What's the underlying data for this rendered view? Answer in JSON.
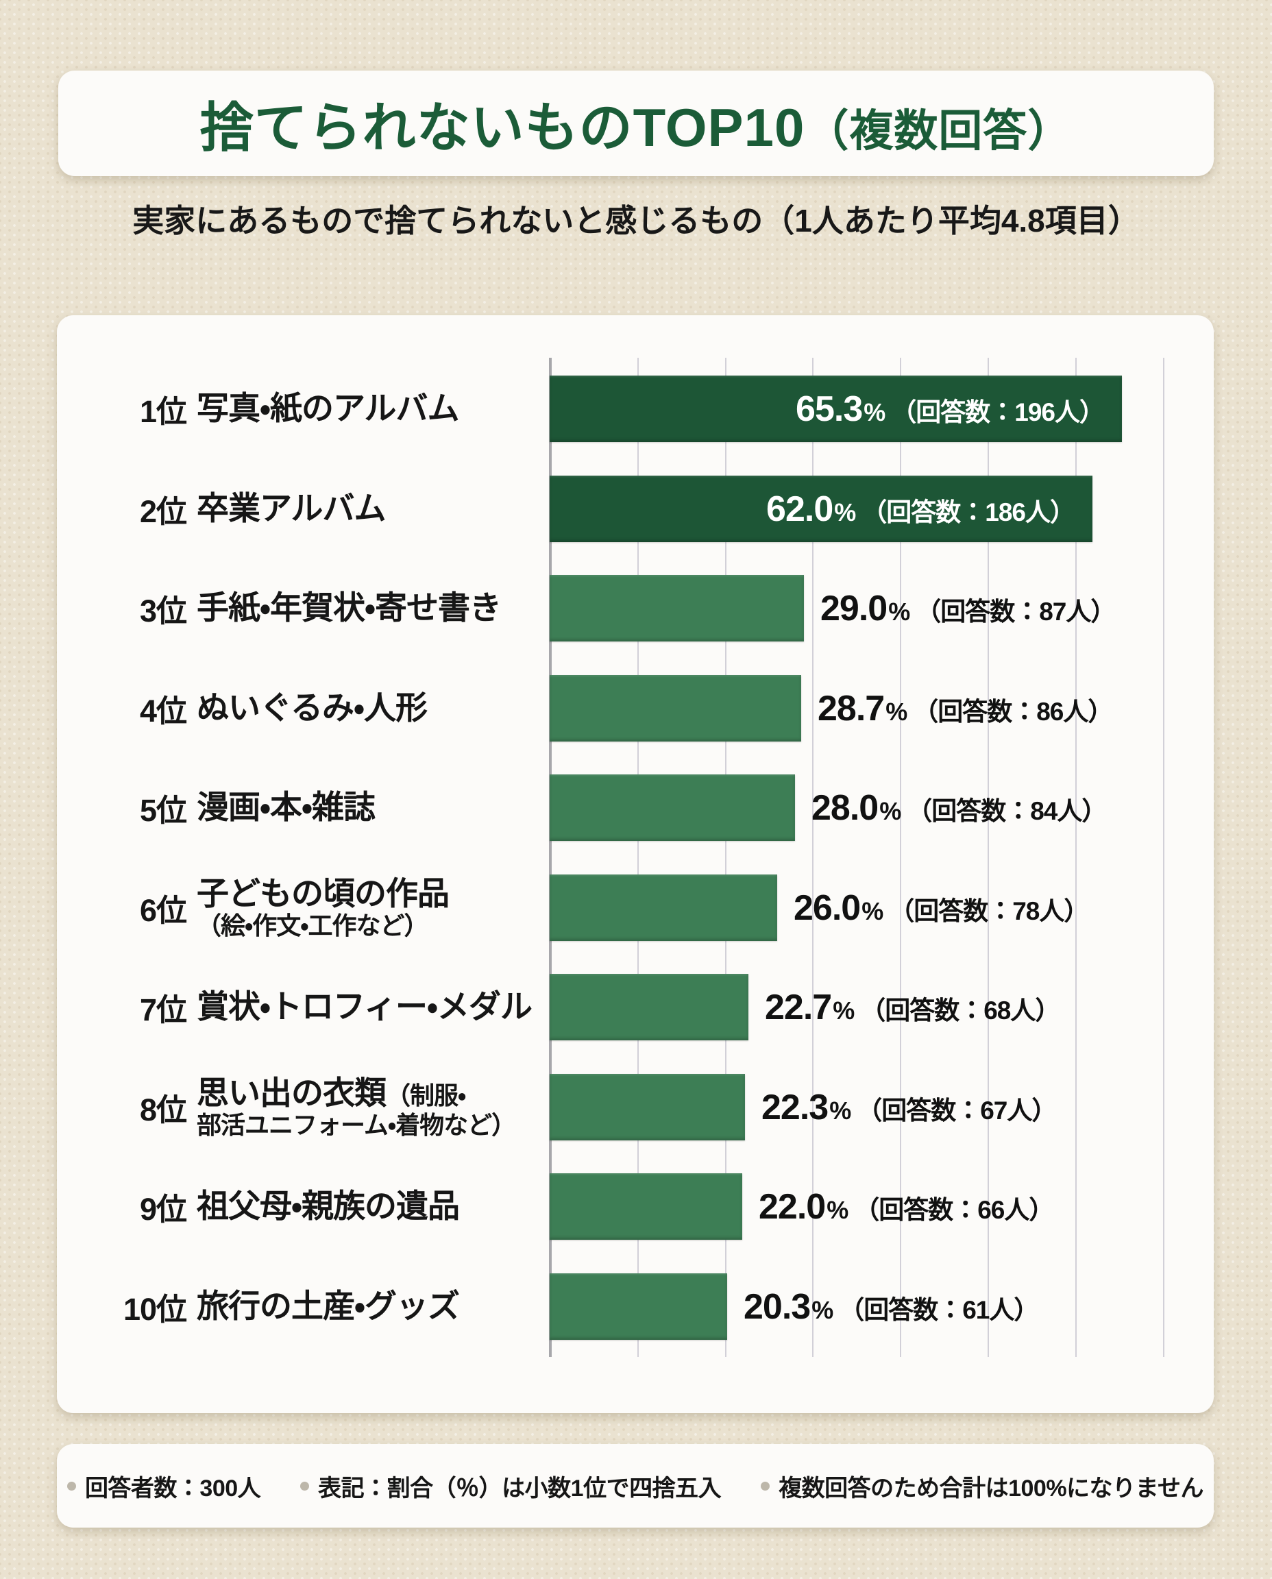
{
  "title": {
    "main": "捨てられないものTOP10",
    "paren": "（複数回答）"
  },
  "subtitle": "実家にあるもので捨てられないと感じるもの（1人あたり平均4.8項目）",
  "chart_data": {
    "type": "bar",
    "orientation": "horizontal",
    "title": "捨てられないものTOP10（複数回答）",
    "value_unit": "%",
    "xlim": [
      0,
      70
    ],
    "gridline_interval_pct": 10,
    "grid": true,
    "items": [
      {
        "rank": "1位",
        "label": "写真・紙のアルバム",
        "label_inline_sub": "",
        "label_sub": "",
        "value": 65.3,
        "value_label": "65.3",
        "count": 196,
        "count_label": "（回答数：196人）",
        "emphasis": true
      },
      {
        "rank": "2位",
        "label": "卒業アルバム",
        "label_inline_sub": "",
        "label_sub": "",
        "value": 62.0,
        "value_label": "62.0",
        "count": 186,
        "count_label": "（回答数：186人）",
        "emphasis": true
      },
      {
        "rank": "3位",
        "label": "手紙・年賀状・寄せ書き",
        "label_inline_sub": "",
        "label_sub": "",
        "value": 29.0,
        "value_label": "29.0",
        "count": 87,
        "count_label": "（回答数：87人）",
        "emphasis": false
      },
      {
        "rank": "4位",
        "label": "ぬいぐるみ・人形",
        "label_inline_sub": "",
        "label_sub": "",
        "value": 28.7,
        "value_label": "28.7",
        "count": 86,
        "count_label": "（回答数：86人）",
        "emphasis": false
      },
      {
        "rank": "5位",
        "label": "漫画・本・雑誌",
        "label_inline_sub": "",
        "label_sub": "",
        "value": 28.0,
        "value_label": "28.0",
        "count": 84,
        "count_label": "（回答数：84人）",
        "emphasis": false
      },
      {
        "rank": "6位",
        "label": "子どもの頃の作品",
        "label_inline_sub": "",
        "label_sub": "（絵・作文・工作など）",
        "value": 26.0,
        "value_label": "26.0",
        "count": 78,
        "count_label": "（回答数：78人）",
        "emphasis": false
      },
      {
        "rank": "7位",
        "label": "賞状・トロフィー・メダル",
        "label_inline_sub": "",
        "label_sub": "",
        "value": 22.7,
        "value_label": "22.7",
        "count": 68,
        "count_label": "（回答数：68人）",
        "emphasis": false
      },
      {
        "rank": "8位",
        "label": "思い出の衣類",
        "label_inline_sub": "（制服・",
        "label_sub": "部活ユニフォーム・着物など）",
        "value": 22.3,
        "value_label": "22.3",
        "count": 67,
        "count_label": "（回答数：67人）",
        "emphasis": false
      },
      {
        "rank": "9位",
        "label": "祖父母・親族の遺品",
        "label_inline_sub": "",
        "label_sub": "",
        "value": 22.0,
        "value_label": "22.0",
        "count": 66,
        "count_label": "（回答数：66人）",
        "emphasis": false
      },
      {
        "rank": "10位",
        "label": "旅行の土産・グッズ",
        "label_inline_sub": "",
        "label_sub": "",
        "value": 20.3,
        "value_label": "20.3",
        "count": 61,
        "count_label": "（回答数：61人）",
        "emphasis": false
      }
    ]
  },
  "footer": {
    "notes": [
      "回答者数：300人",
      "表記：割合（％）は小数1位で四捨五入",
      "複数回答のため合計は100%になりません"
    ]
  },
  "colors": {
    "background": "#eae2d0",
    "title_green": "#1b5c38",
    "accent_dark": "#1d5636",
    "accent_mid": "#3d7e55"
  }
}
